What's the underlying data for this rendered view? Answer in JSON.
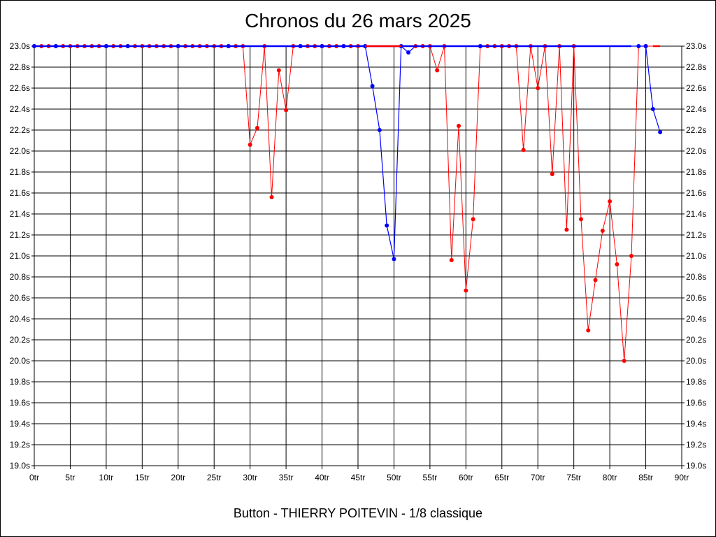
{
  "chart_data": {
    "type": "line",
    "title": "Chronos du 26 mars 2025",
    "footer": "Button - THIERRY POITEVIN - 1/8 classique",
    "xlim": [
      0,
      90
    ],
    "ylim": [
      19.0,
      23.0
    ],
    "grid": true,
    "xticks": [
      0,
      5,
      10,
      15,
      20,
      25,
      30,
      35,
      40,
      45,
      50,
      55,
      60,
      65,
      70,
      75,
      80,
      85,
      90
    ],
    "xtick_labels": [
      "0tr",
      "5tr",
      "10tr",
      "15tr",
      "20tr",
      "25tr",
      "30tr",
      "35tr",
      "40tr",
      "45tr",
      "50tr",
      "55tr",
      "60tr",
      "65tr",
      "70tr",
      "75tr",
      "80tr",
      "85tr",
      "90tr"
    ],
    "yticks": [
      19.0,
      19.2,
      19.4,
      19.6,
      19.8,
      20.0,
      20.2,
      20.4,
      20.6,
      20.8,
      21.0,
      21.2,
      21.4,
      21.6,
      21.8,
      22.0,
      22.2,
      22.4,
      22.6,
      22.8,
      23.0
    ],
    "ytick_labels": [
      "19.0s",
      "19.2s",
      "19.4s",
      "19.6s",
      "19.8s",
      "20.0s",
      "20.2s",
      "20.4s",
      "20.6s",
      "20.8s",
      "21.0s",
      "21.2s",
      "21.4s",
      "21.6s",
      "21.8s",
      "22.0s",
      "22.2s",
      "22.4s",
      "22.6s",
      "22.8s",
      "23.0s"
    ],
    "series": [
      {
        "color": "#ff0000",
        "x": [
          0,
          1,
          2,
          3,
          4,
          5,
          6,
          7,
          8,
          9,
          10,
          11,
          12,
          13,
          14,
          15,
          16,
          17,
          18,
          19,
          20,
          21,
          22,
          23,
          24,
          25,
          26,
          27,
          28,
          29,
          30,
          31,
          32,
          33,
          34,
          35,
          36,
          37,
          38,
          39,
          40,
          41,
          42,
          43,
          44,
          45,
          46,
          47,
          48,
          49,
          50,
          51,
          52,
          53,
          54,
          55,
          56,
          57,
          58,
          59,
          60,
          61,
          62,
          63,
          64,
          65,
          66,
          67,
          68,
          69,
          70,
          71,
          72,
          73,
          74,
          75,
          76,
          77,
          78,
          79,
          80,
          81,
          82,
          83,
          84,
          85,
          86
        ],
        "y": [
          23.0,
          23.0,
          23.0,
          23.0,
          23.0,
          23.0,
          23.0,
          23.0,
          23.0,
          23.0,
          23.0,
          23.0,
          23.0,
          23.0,
          23.0,
          23.0,
          23.0,
          23.0,
          23.0,
          23.0,
          23.0,
          23.0,
          23.0,
          23.0,
          23.0,
          23.0,
          23.0,
          23.0,
          23.0,
          23.0,
          22.06,
          22.22,
          23.0,
          21.56,
          22.77,
          22.39,
          23.0,
          23.0,
          23.0,
          23.0,
          23.0,
          23.0,
          23.0,
          23.0,
          23.0,
          23.0,
          23.0,
          23.0,
          23.0,
          23.0,
          23.0,
          23.0,
          23.0,
          23.0,
          23.0,
          23.0,
          22.77,
          23.0,
          20.96,
          22.24,
          20.67,
          21.35,
          23.0,
          23.0,
          23.0,
          23.0,
          23.0,
          23.0,
          22.01,
          23.0,
          22.6,
          23.0,
          21.78,
          23.0,
          21.25,
          23.0,
          21.35,
          20.29,
          20.77,
          21.24,
          21.52,
          20.92,
          20.0,
          21.0,
          23.0,
          23.0,
          23.0
        ],
        "markers": [
          0,
          1,
          2,
          3,
          4,
          5,
          6,
          7,
          8,
          9,
          10,
          11,
          12,
          13,
          14,
          15,
          16,
          17,
          18,
          19,
          20,
          21,
          22,
          23,
          24,
          25,
          26,
          27,
          28,
          29,
          30,
          31,
          32,
          33,
          34,
          35,
          36,
          37,
          38,
          39,
          40,
          41,
          42,
          43,
          44,
          45,
          46,
          53,
          54,
          55,
          56,
          57,
          58,
          59,
          60,
          61,
          62,
          63,
          64,
          65,
          66,
          67,
          68,
          69,
          70,
          71,
          72,
          73,
          74,
          75,
          76,
          77,
          78,
          79,
          80,
          81,
          82,
          83,
          85
        ]
      },
      {
        "color": "#0000ff",
        "x": [
          0,
          3,
          10,
          13,
          20,
          27,
          37,
          40,
          43,
          46,
          47,
          48,
          49,
          50,
          51,
          52,
          53,
          62,
          84,
          85,
          86,
          87
        ],
        "y": [
          23.0,
          23.0,
          23.0,
          23.0,
          23.0,
          23.0,
          23.0,
          23.0,
          23.0,
          23.0,
          22.62,
          22.2,
          21.29,
          20.97,
          23.0,
          22.94,
          23.0,
          23.0,
          23.0,
          23.0,
          22.4,
          22.18
        ],
        "markers": [
          0,
          3,
          10,
          13,
          20,
          27,
          37,
          40,
          43,
          46,
          47,
          48,
          49,
          50,
          51,
          52,
          62,
          84,
          85,
          86,
          87
        ]
      }
    ]
  }
}
